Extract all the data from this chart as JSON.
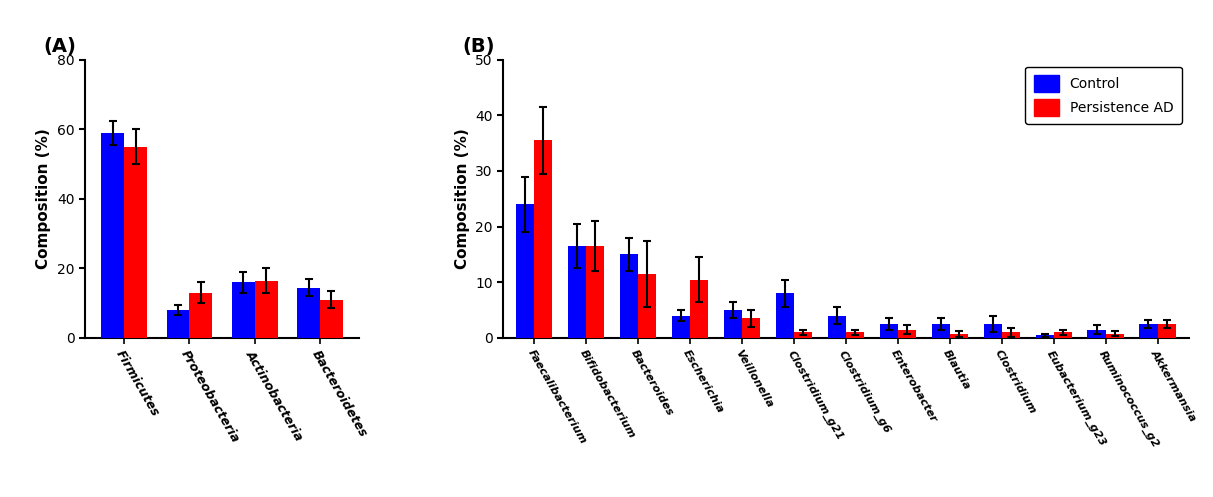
{
  "panel_A": {
    "categories": [
      "Firmicutes",
      "Proteobacteria",
      "Actinobacteria",
      "Bacteroidetes"
    ],
    "control_values": [
      59,
      8,
      16,
      14.5
    ],
    "control_errors": [
      3.5,
      1.5,
      3,
      2.5
    ],
    "persistence_values": [
      55,
      13,
      16.5,
      11
    ],
    "persistence_errors": [
      5,
      3,
      3.5,
      2.5
    ],
    "ylabel": "Composition (%)",
    "ylim": [
      0,
      80
    ],
    "yticks": [
      0,
      20,
      40,
      60,
      80
    ],
    "label": "(A)"
  },
  "panel_B": {
    "categories": [
      "Faecalibacterium",
      "Bifidobacterium",
      "Bacteroides",
      "Escherichia",
      "Veillonella",
      "Clostridium_g21",
      "Clostridium_g6",
      "Enterobacter",
      "Blautia",
      "Clostridium",
      "Eubacterium_g23",
      "Ruminococcus_g2",
      "Akkermansia"
    ],
    "control_values": [
      24,
      16.5,
      15,
      4,
      5,
      8,
      4,
      2.5,
      2.5,
      2.5,
      0.5,
      1.5,
      2.5
    ],
    "control_errors": [
      5,
      4,
      3,
      1,
      1.5,
      2.5,
      1.5,
      1,
      1,
      1.5,
      0.3,
      0.8,
      0.8
    ],
    "persistence_values": [
      35.5,
      16.5,
      11.5,
      10.5,
      3.5,
      1,
      1,
      1.5,
      0.7,
      1,
      1,
      0.8,
      2.5
    ],
    "persistence_errors": [
      6,
      4.5,
      6,
      4,
      1.5,
      0.5,
      0.5,
      0.8,
      0.5,
      0.8,
      0.5,
      0.5,
      0.8
    ],
    "ylabel": "Composition (%)",
    "ylim": [
      0,
      50
    ],
    "yticks": [
      0,
      10,
      20,
      30,
      40,
      50
    ],
    "label": "(B)"
  },
  "legend": {
    "control_label": "Control",
    "persistence_label": "Persistence AD",
    "control_color": "#0000FF",
    "persistence_color": "#FF0000"
  },
  "bar_width": 0.35,
  "control_color": "#0000FF",
  "persistence_color": "#FF0000",
  "background_color": "#FFFFFF",
  "capsize": 3,
  "elinewidth": 1.5,
  "error_color": "black"
}
